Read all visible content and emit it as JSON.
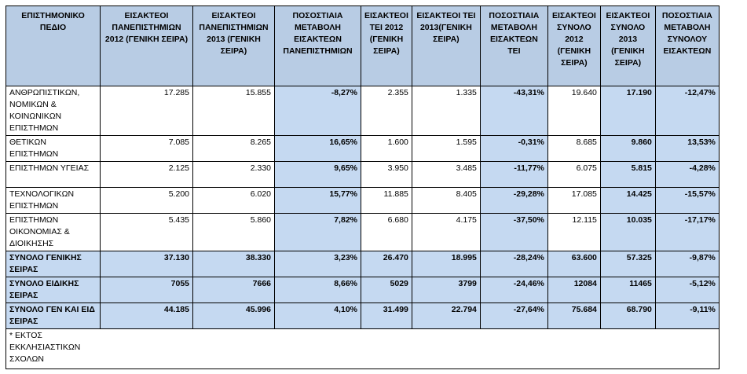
{
  "headers": [
    "ΕΠΙΣΤΗΜΟΝΙΚΟ ΠΕΔΙΟ",
    "ΕΙΣΑΚΤΕΟΙ ΠΑΝΕΠΙΣΤΗΜΙΩΝ 2012 (ΓΕΝΙΚΗ ΣΕΙΡΑ)",
    "ΕΙΣΑΚΤΕΟΙ ΠΑΝΕΠΙΣΤΗΜΙΩΝ 2013 (ΓΕΝΙΚΗ ΣΕΙΡΑ)",
    "ΠΟΣΟΣΤΙΑΙΑ ΜΕΤΑΒΟΛΗ ΕΙΣΑΚΤΕΩΝ ΠΑΝΕΠΙΣΤΗΜΙΩΝ",
    "ΕΙΣΑΚΤΕΟΙ ΤΕΙ 2012 (ΓΕΝΙΚΗ ΣΕΙΡΑ)",
    "ΕΙΣΑΚΤΕΟΙ ΤΕΙ 2013(ΓΕΝΙΚΗ ΣΕΙΡΑ)",
    "ΠΟΣΟΣΤΙΑΙΑ ΜΕΤΑΒΟΛΗ ΕΙΣΑΚΤΕΩΝ ΤΕΙ",
    "ΕΙΣΑΚΤΕΟΙ ΣΥΝΟΛΟ 2012 (ΓΕΝΙΚΗ ΣΕΙΡΑ)",
    "ΕΙΣΑΚΤΕΟΙ ΣΥΝΟΛΟ 2013 (ΓΕΝΙΚΗ ΣΕΙΡΑ)",
    "ΠΟΣΟΣΤΙΑΙΑ ΜΕΤΑΒΟΛΗ ΣΥΝΟΛΟΥ ΕΙΣΑΚΤΕΩΝ"
  ],
  "rows": [
    [
      "ΑΝΘΡΩΠΙΣΤΙΚΩΝ, ΝΟΜΙΚΩΝ & ΚΟΙΝΩΝΙΚΩΝ ΕΠΙΣΤΗΜΩΝ",
      "17.285",
      "15.855",
      "-8,27%",
      "2.355",
      "1.335",
      "-43,31%",
      "19.640",
      "17.190",
      "-12,47%"
    ],
    [
      "ΘΕΤΙΚΩΝ ΕΠΙΣΤΗΜΩΝ",
      "7.085",
      "8.265",
      "16,65%",
      "1.600",
      "1.595",
      "-0,31%",
      "8.685",
      "9.860",
      "13,53%"
    ],
    [
      "ΕΠΙΣΤΗΜΩΝ ΥΓΕΙΑΣ",
      "2.125",
      "2.330",
      "9,65%",
      "3.950",
      "3.485",
      "-11,77%",
      "6.075",
      "5.815",
      "-4,28%"
    ],
    [
      "ΤΕΧΝΟΛΟΓΙΚΩΝ ΕΠΙΣΤΗΜΩΝ",
      "5.200",
      "6.020",
      "15,77%",
      "11.885",
      "8.405",
      "-29,28%",
      "17.085",
      "14.425",
      "-15,57%"
    ],
    [
      "ΕΠΙΣΤΗΜΩΝ ΟΙΚΟΝΟΜΙΑΣ & ΔΙΟΙΚΗΣΗΣ",
      "5.435",
      "5.860",
      "7,82%",
      "6.680",
      "4.175",
      "-37,50%",
      "12.115",
      "10.035",
      "-17,17%"
    ]
  ],
  "totals": [
    [
      "ΣΥΝΟΛΟ ΓΕΝΙΚΗΣ ΣΕΙΡΑΣ",
      "37.130",
      "38.330",
      "3,23%",
      "26.470",
      "18.995",
      "-28,24%",
      "63.600",
      "57.325",
      "-9,87%"
    ],
    [
      "ΣΥΝΟΛΟ ΕΙΔΙΚΗΣ ΣΕΙΡΑΣ",
      "7055",
      "7666",
      "8,66%",
      "5029",
      "3799",
      "-24,46%",
      "12084",
      "11465",
      "-5,12%"
    ],
    [
      "ΣΥΝΟΛΟ ΓΕΝ ΚΑΙ ΕΙΔ ΣΕΙΡΑΣ",
      "44.185",
      "45.996",
      "4,10%",
      "31.499",
      "22.794",
      "-27,64%",
      "75.684",
      "68.790",
      "-9,11%"
    ]
  ],
  "footnote": "* ΕΚΤΟΣ ΕΚΚΛΗΣΙΑΣΤΙΚΩΝ ΣΧΟΛΩΝ",
  "colors": {
    "header_bg": "#b8cce4",
    "highlight_bg": "#c5d9f1"
  }
}
